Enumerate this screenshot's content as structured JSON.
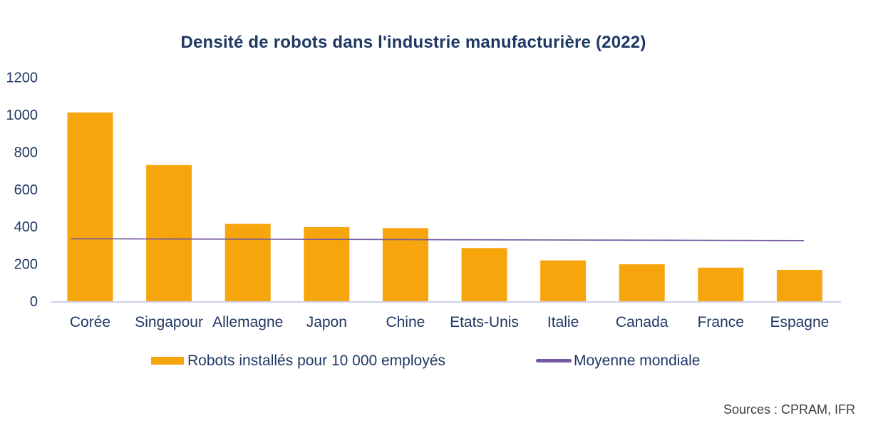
{
  "title": "Densité de robots dans l'industrie manufacturière (2022)",
  "legend": {
    "bars_label": "Robots installés pour 10 000 employés",
    "line_label": "Moyenne mondiale"
  },
  "source": "Sources : CPRAM, IFR",
  "colors": {
    "background": "#FFFFFF",
    "bar": "#F7A50C",
    "line": "#7457A0",
    "text": "#1F3864",
    "axis_line": "#CCD3EA",
    "source_text": "#3F3F3F"
  },
  "chart_data": {
    "type": "bar",
    "title": "Densité de robots dans l'industrie manufacturière (2022)",
    "categories": [
      "Corée",
      "Singapour",
      "Allemagne",
      "Japon",
      "Chine",
      "Etats-Unis",
      "Italie",
      "Canada",
      "France",
      "Espagne"
    ],
    "series": [
      {
        "name": "Robots installés pour 10 000 employés",
        "type": "bar",
        "values": [
          1012,
          730,
          415,
          397,
          392,
          285,
          219,
          198,
          180,
          168
        ]
      },
      {
        "name": "Moyenne mondiale",
        "type": "line",
        "values": [
          335,
          334,
          333,
          332,
          331,
          330,
          329,
          327,
          326,
          325
        ]
      }
    ],
    "xlabel": "",
    "ylabel": "",
    "ylim": [
      0,
      1200
    ],
    "ytick_step": 200,
    "grid": false,
    "legend_position": "bottom",
    "source": "Sources : CPRAM, IFR"
  }
}
